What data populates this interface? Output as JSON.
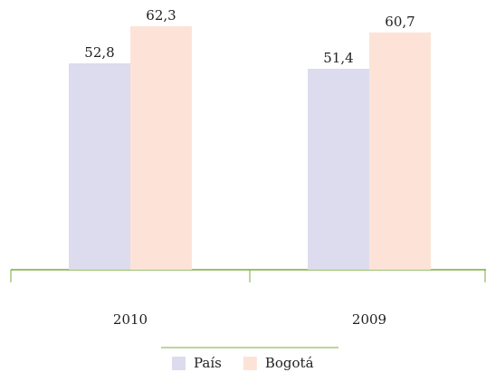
{
  "chart_data": {
    "type": "bar",
    "categories": [
      "2010",
      "2009"
    ],
    "series": [
      {
        "name": "País",
        "color": "#dcdcee",
        "values": [
          52.8,
          51.4
        ],
        "value_labels": [
          "52,8",
          "51,4"
        ]
      },
      {
        "name": "Bogotá",
        "color": "#fde3d7",
        "values": [
          62.3,
          60.7
        ],
        "value_labels": [
          "62,3",
          "60,7"
        ]
      }
    ],
    "ylim": [
      0,
      69
    ]
  }
}
